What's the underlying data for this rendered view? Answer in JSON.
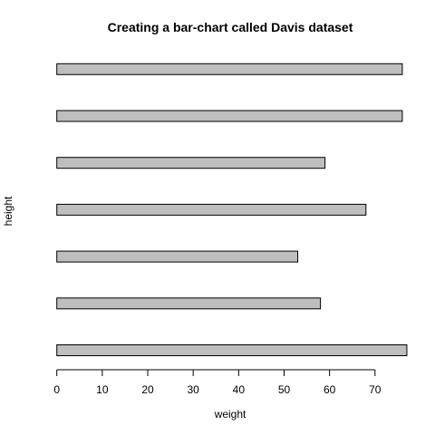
{
  "chart_data": {
    "type": "bar",
    "orientation": "horizontal",
    "title": "Creating a bar-chart called Davis dataset",
    "xlabel": "weight",
    "ylabel": "height",
    "values": [
      77,
      58,
      53,
      68,
      59,
      76,
      76
    ],
    "xlim": [
      0,
      77
    ],
    "xticks": [
      0,
      10,
      20,
      30,
      40,
      50,
      60,
      70
    ],
    "bar_color": "#bebebe",
    "grid": false,
    "legend": "none"
  }
}
